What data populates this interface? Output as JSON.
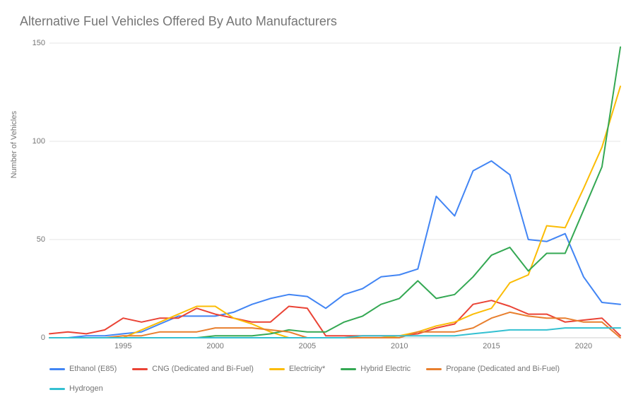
{
  "chart": {
    "type": "line",
    "title": "Alternative Fuel Vehicles Offered By Auto Manufacturers",
    "title_fontsize": 18,
    "title_color": "#757575",
    "ylabel": "Number of Vehicles",
    "label_fontsize": 11,
    "label_color": "#757575",
    "background_color": "#ffffff",
    "grid_color": "#e6e6e6",
    "axis_color": "#cfcfcf",
    "x_years": [
      1991,
      1992,
      1993,
      1994,
      1995,
      1996,
      1997,
      1998,
      1999,
      2000,
      2001,
      2002,
      2003,
      2004,
      2005,
      2006,
      2007,
      2008,
      2009,
      2010,
      2011,
      2012,
      2013,
      2014,
      2015,
      2016,
      2017,
      2018,
      2019,
      2020,
      2021,
      2022
    ],
    "xlim": [
      1991,
      2022
    ],
    "xticks": [
      1995,
      2000,
      2005,
      2010,
      2015,
      2020
    ],
    "ylim": [
      0,
      150
    ],
    "yticks": [
      0,
      50,
      100,
      150
    ],
    "line_width": 2,
    "series": [
      {
        "name": "Ethanol (E85)",
        "color": "#4285f4",
        "values": [
          0,
          0,
          1,
          1,
          2,
          3,
          7,
          11,
          11,
          11,
          13,
          17,
          20,
          22,
          21,
          15,
          22,
          25,
          31,
          32,
          35,
          72,
          62,
          85,
          90,
          83,
          50,
          49,
          53,
          31,
          18,
          17
        ]
      },
      {
        "name": "CNG (Dedicated and Bi-Fuel)",
        "color": "#ea4335",
        "values": [
          2,
          3,
          2,
          4,
          10,
          8,
          10,
          10,
          15,
          12,
          10,
          8,
          8,
          16,
          15,
          1,
          1,
          1,
          1,
          1,
          2,
          5,
          7,
          17,
          19,
          16,
          12,
          12,
          8,
          9,
          10,
          1
        ]
      },
      {
        "name": "Electricity*",
        "color": "#fbbc05",
        "values": [
          0,
          0,
          0,
          0,
          0,
          4,
          8,
          12,
          16,
          16,
          10,
          7,
          3,
          0,
          0,
          0,
          0,
          0,
          0,
          1,
          3,
          6,
          8,
          12,
          15,
          28,
          32,
          57,
          56,
          76,
          97,
          128
        ]
      },
      {
        "name": "Hybrid Electric",
        "color": "#34a853",
        "values": [
          0,
          0,
          0,
          0,
          0,
          0,
          0,
          0,
          0,
          1,
          1,
          1,
          2,
          4,
          3,
          3,
          8,
          11,
          17,
          20,
          29,
          20,
          22,
          31,
          42,
          46,
          34,
          43,
          43,
          65,
          87,
          148
        ]
      },
      {
        "name": "Propane (Dedicated and Bi-Fuel)",
        "color": "#e87f2e",
        "values": [
          0,
          0,
          0,
          0,
          1,
          1,
          3,
          3,
          3,
          5,
          5,
          5,
          4,
          3,
          0,
          0,
          0,
          0,
          0,
          0,
          3,
          3,
          3,
          5,
          10,
          13,
          11,
          10,
          10,
          8,
          8,
          0
        ]
      },
      {
        "name": "Hydrogen",
        "color": "#34c0d1",
        "values": [
          0,
          0,
          0,
          0,
          0,
          0,
          0,
          0,
          0,
          0,
          0,
          0,
          0,
          0,
          0,
          0,
          0,
          1,
          1,
          1,
          1,
          1,
          1,
          2,
          3,
          4,
          4,
          4,
          5,
          5,
          5,
          5
        ]
      }
    ]
  }
}
